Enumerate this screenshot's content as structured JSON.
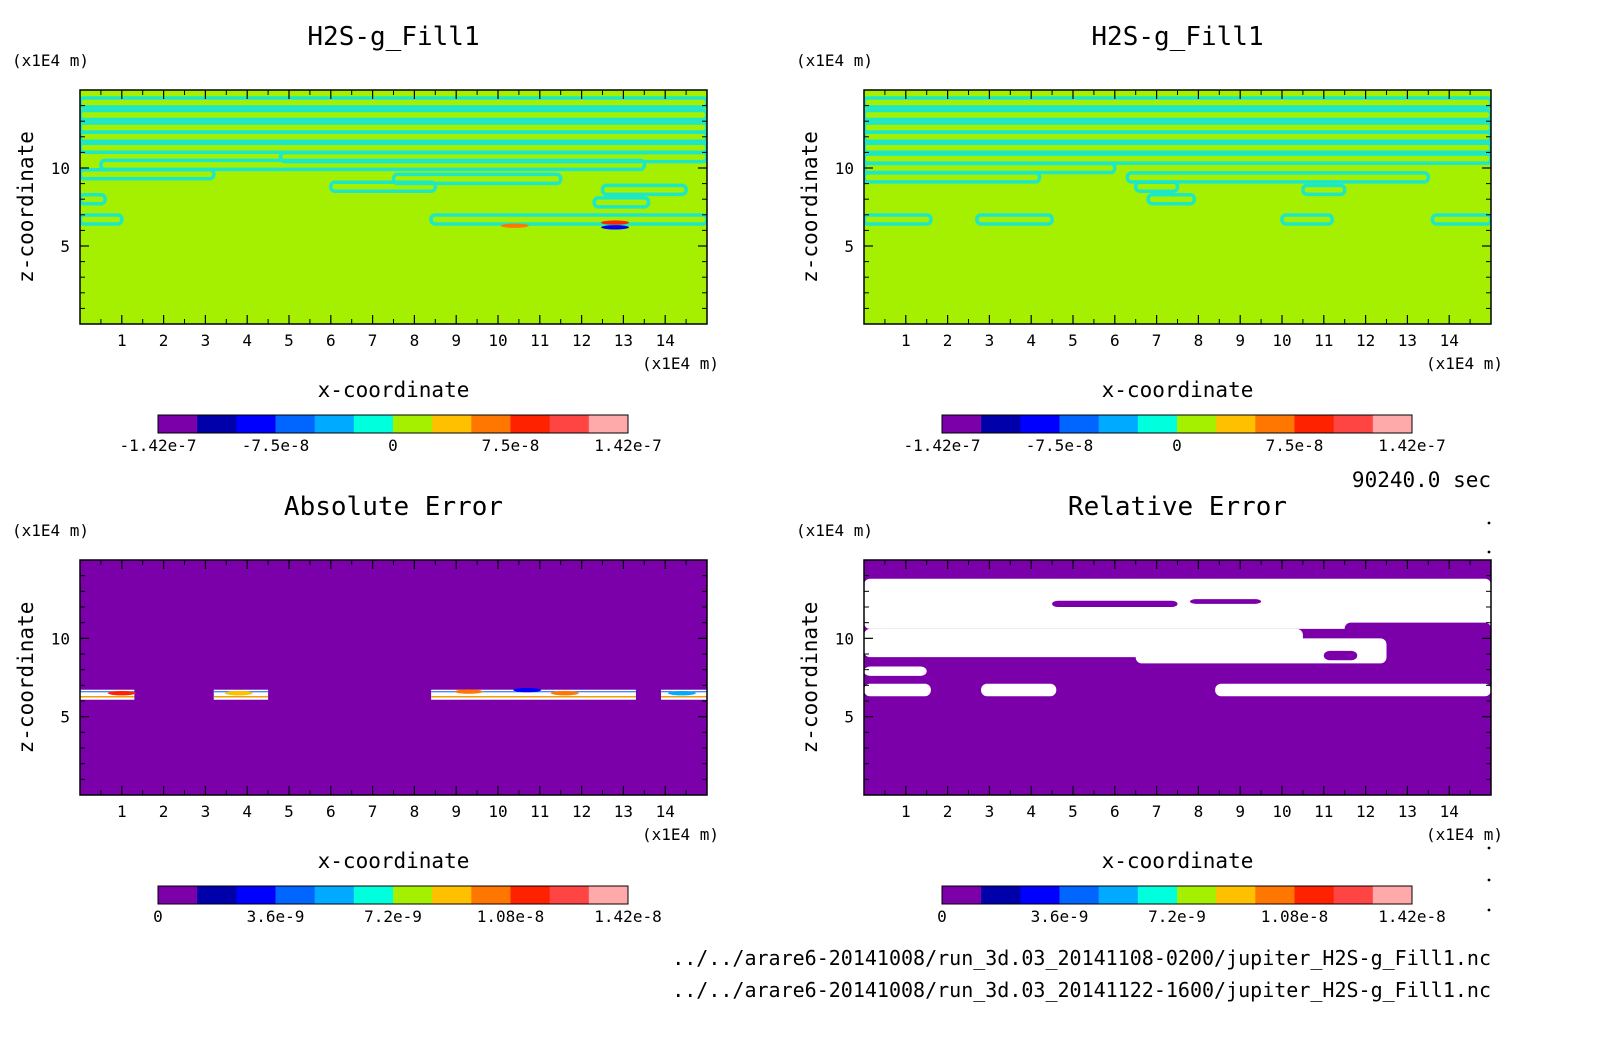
{
  "time_label": "90240.0 sec",
  "footer": {
    "file1": "../../arare6-20141008/run_3d.03_20141108-0200/jupiter_H2S-g_Fill1.nc",
    "file2": "../../arare6-20141008/run_3d.03_20141122-1600/jupiter_H2S-g_Fill1.nc"
  },
  "colors": {
    "purple": "#7b00aa",
    "green": "#a4f000",
    "cyan": "#1ce8c8",
    "white": "#ffffff"
  },
  "colorbar_colors": [
    "#7b00aa",
    "#0000aa",
    "#0000ff",
    "#0066ff",
    "#00aaff",
    "#00ffdd",
    "#a4f000",
    "#ffc000",
    "#ff7700",
    "#ff2200",
    "#ff4444",
    "#ffaaaa"
  ],
  "chart_data": [
    {
      "type": "heatmap",
      "title": "H2S-g_Fill1",
      "xlabel": "x-coordinate",
      "ylabel": "z-coordinate",
      "x_unit": "(x1E4 m)",
      "y_unit": "(x1E4 m)",
      "xlim": [
        0,
        15
      ],
      "ylim": [
        0,
        15
      ],
      "xticks": [
        "1",
        "2",
        "3",
        "4",
        "5",
        "6",
        "7",
        "8",
        "9",
        "10",
        "11",
        "12",
        "13",
        "14"
      ],
      "yticks": [
        "5",
        "10"
      ],
      "colorbar": {
        "labels": [
          "-1.42e-7",
          "-7.5e-8",
          "0",
          "7.5e-8",
          "1.42e-7"
        ]
      },
      "background": "green",
      "bands": [
        {
          "z": 14.2,
          "x0": 0,
          "x1": 15,
          "color": "cyan"
        },
        {
          "z": 13.4,
          "x0": 0,
          "x1": 15,
          "color": "cyan"
        },
        {
          "z": 12.6,
          "x0": 0,
          "x1": 15,
          "color": "cyan"
        },
        {
          "z": 12.0,
          "x0": 0,
          "x1": 15,
          "color": "cyan"
        },
        {
          "z": 11.3,
          "x0": 0,
          "x1": 15,
          "color": "cyan"
        },
        {
          "z": 10.7,
          "x0": 4.8,
          "x1": 15,
          "color": "cyan"
        },
        {
          "z": 10.2,
          "x0": 0.5,
          "x1": 13.5,
          "color": "cyan"
        },
        {
          "z": 9.6,
          "x0": 0,
          "x1": 3.2,
          "color": "cyan"
        },
        {
          "z": 9.3,
          "x0": 7.5,
          "x1": 11.5,
          "color": "cyan"
        },
        {
          "z": 8.8,
          "x0": 6,
          "x1": 8.5,
          "color": "cyan"
        },
        {
          "z": 8.6,
          "x0": 12.5,
          "x1": 14.5,
          "color": "cyan"
        },
        {
          "z": 8.0,
          "x0": 0,
          "x1": 0.6,
          "color": "cyan"
        },
        {
          "z": 7.8,
          "x0": 12.3,
          "x1": 13.6,
          "color": "cyan"
        },
        {
          "z": 6.7,
          "x0": 0,
          "x1": 1.0,
          "color": "cyan"
        },
        {
          "z": 6.7,
          "x0": 8.4,
          "x1": 15,
          "color": "cyan"
        }
      ],
      "hotspots": [
        {
          "x": 10.4,
          "z": 6.3,
          "color": "#ff7700"
        },
        {
          "x": 12.8,
          "z": 6.5,
          "color": "#ff2200"
        },
        {
          "x": 12.8,
          "z": 6.2,
          "color": "#0000ff"
        }
      ]
    },
    {
      "type": "heatmap",
      "title": "H2S-g_Fill1",
      "xlabel": "x-coordinate",
      "ylabel": "z-coordinate",
      "x_unit": "(x1E4 m)",
      "y_unit": "(x1E4 m)",
      "xlim": [
        0,
        15
      ],
      "ylim": [
        0,
        15
      ],
      "xticks": [
        "1",
        "2",
        "3",
        "4",
        "5",
        "6",
        "7",
        "8",
        "9",
        "10",
        "11",
        "12",
        "13",
        "14"
      ],
      "yticks": [
        "5",
        "10"
      ],
      "colorbar": {
        "labels": [
          "-1.42e-7",
          "-7.5e-8",
          "0",
          "7.5e-8",
          "1.42e-7"
        ]
      },
      "background": "green",
      "bands": [
        {
          "z": 14.2,
          "x0": 0,
          "x1": 15,
          "color": "cyan"
        },
        {
          "z": 13.4,
          "x0": 0,
          "x1": 15,
          "color": "cyan"
        },
        {
          "z": 12.6,
          "x0": 0,
          "x1": 15,
          "color": "cyan"
        },
        {
          "z": 12.0,
          "x0": 0,
          "x1": 15,
          "color": "cyan"
        },
        {
          "z": 11.3,
          "x0": 0,
          "x1": 15,
          "color": "cyan"
        },
        {
          "z": 10.6,
          "x0": 0,
          "x1": 15,
          "color": "cyan"
        },
        {
          "z": 10.0,
          "x0": 0,
          "x1": 6,
          "color": "cyan"
        },
        {
          "z": 9.4,
          "x0": 0,
          "x1": 4.2,
          "color": "cyan"
        },
        {
          "z": 9.4,
          "x0": 6.3,
          "x1": 13.5,
          "color": "cyan"
        },
        {
          "z": 8.8,
          "x0": 6.5,
          "x1": 7.5,
          "color": "cyan"
        },
        {
          "z": 8.6,
          "x0": 10.5,
          "x1": 11.5,
          "color": "cyan"
        },
        {
          "z": 8.0,
          "x0": 6.8,
          "x1": 7.9,
          "color": "cyan"
        },
        {
          "z": 6.7,
          "x0": 0,
          "x1": 1.6,
          "color": "cyan"
        },
        {
          "z": 6.7,
          "x0": 2.7,
          "x1": 4.5,
          "color": "cyan"
        },
        {
          "z": 6.7,
          "x0": 10.0,
          "x1": 11.2,
          "color": "cyan"
        },
        {
          "z": 6.7,
          "x0": 13.6,
          "x1": 15,
          "color": "cyan"
        }
      ],
      "hotspots": []
    },
    {
      "type": "heatmap",
      "title": "Absolute Error",
      "xlabel": "x-coordinate",
      "ylabel": "z-coordinate",
      "x_unit": "(x1E4 m)",
      "y_unit": "(x1E4 m)",
      "xlim": [
        0,
        15
      ],
      "ylim": [
        0,
        15
      ],
      "xticks": [
        "1",
        "2",
        "3",
        "4",
        "5",
        "6",
        "7",
        "8",
        "9",
        "10",
        "11",
        "12",
        "13",
        "14"
      ],
      "yticks": [
        "5",
        "10"
      ],
      "colorbar": {
        "labels": [
          "0",
          "3.6e-9",
          "7.2e-9",
          "1.08e-8",
          "1.42e-8"
        ]
      },
      "background": "purple",
      "bands": [
        {
          "z": 6.4,
          "x0": 0,
          "x1": 1.3,
          "color": "white"
        },
        {
          "z": 6.4,
          "x0": 3.2,
          "x1": 4.5,
          "color": "white"
        },
        {
          "z": 6.4,
          "x0": 8.4,
          "x1": 13.3,
          "color": "white"
        },
        {
          "z": 6.4,
          "x0": 13.9,
          "x1": 15,
          "color": "white"
        }
      ],
      "hotspots": [
        {
          "x": 1.0,
          "z": 6.5,
          "color": "#ff2200"
        },
        {
          "x": 3.8,
          "z": 6.5,
          "color": "#ffc000"
        },
        {
          "x": 9.3,
          "z": 6.6,
          "color": "#ff7700"
        },
        {
          "x": 10.7,
          "z": 6.7,
          "color": "#0000ff"
        },
        {
          "x": 11.6,
          "z": 6.5,
          "color": "#ff7700"
        },
        {
          "x": 14.4,
          "z": 6.5,
          "color": "#00aaff"
        }
      ]
    },
    {
      "type": "heatmap",
      "title": "Relative Error",
      "xlabel": "x-coordinate",
      "ylabel": "z-coordinate",
      "x_unit": "(x1E4 m)",
      "y_unit": "(x1E4 m)",
      "xlim": [
        0,
        15
      ],
      "ylim": [
        0,
        15
      ],
      "xticks": [
        "1",
        "2",
        "3",
        "4",
        "5",
        "6",
        "7",
        "8",
        "9",
        "10",
        "11",
        "12",
        "13",
        "14"
      ],
      "yticks": [
        "5",
        "10"
      ],
      "colorbar": {
        "labels": [
          "0",
          "3.6e-9",
          "7.2e-9",
          "1.08e-8",
          "1.42e-8"
        ]
      },
      "background": "purple",
      "white_regions": [
        {
          "x0": 0,
          "x1": 15,
          "z0": 10.6,
          "z1": 13.8
        },
        {
          "x0": 0,
          "x1": 10.5,
          "z0": 8.8,
          "z1": 10.6
        },
        {
          "x0": 6.5,
          "x1": 12.5,
          "z0": 8.4,
          "z1": 10.0
        },
        {
          "x0": 0,
          "x1": 1.5,
          "z0": 7.6,
          "z1": 8.2
        },
        {
          "x0": 0,
          "x1": 1.6,
          "z0": 6.3,
          "z1": 7.1
        },
        {
          "x0": 2.8,
          "x1": 4.6,
          "z0": 6.3,
          "z1": 7.1
        },
        {
          "x0": 8.4,
          "x1": 15,
          "z0": 6.3,
          "z1": 7.1
        }
      ],
      "purple_regions": [
        {
          "x0": 4.5,
          "x1": 7.5,
          "z0": 12.0,
          "z1": 12.4
        },
        {
          "x0": 7.8,
          "x1": 9.5,
          "z0": 12.2,
          "z1": 12.5
        },
        {
          "x0": 11.5,
          "x1": 15,
          "z0": 10.2,
          "z1": 11.0
        },
        {
          "x0": 13.0,
          "x1": 15,
          "z0": 8.2,
          "z1": 9.5
        },
        {
          "x0": 11.0,
          "x1": 11.8,
          "z0": 8.6,
          "z1": 9.2
        }
      ],
      "colorbar_marker": "white"
    }
  ]
}
